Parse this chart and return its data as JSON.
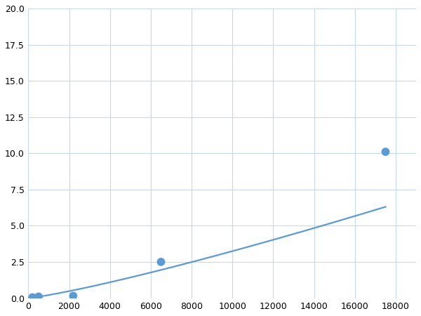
{
  "x": [
    200,
    500,
    2200,
    6500,
    17500
  ],
  "y": [
    0.05,
    0.1,
    0.15,
    2.5,
    10.1
  ],
  "line_color": "#5b9bd5",
  "marker_color": "#5b9bd5",
  "marker_size": 6,
  "linewidth": 1.6,
  "xlim": [
    0,
    19000
  ],
  "ylim": [
    0,
    20
  ],
  "xticks": [
    0,
    2000,
    4000,
    6000,
    8000,
    10000,
    12000,
    14000,
    16000,
    18000
  ],
  "yticks": [
    0.0,
    2.5,
    5.0,
    7.5,
    10.0,
    12.5,
    15.0,
    17.5,
    20.0
  ],
  "grid_color": "#c8d8e8",
  "background_color": "#ffffff",
  "tick_fontsize": 9,
  "figsize": [
    6.0,
    4.5
  ],
  "dpi": 100
}
